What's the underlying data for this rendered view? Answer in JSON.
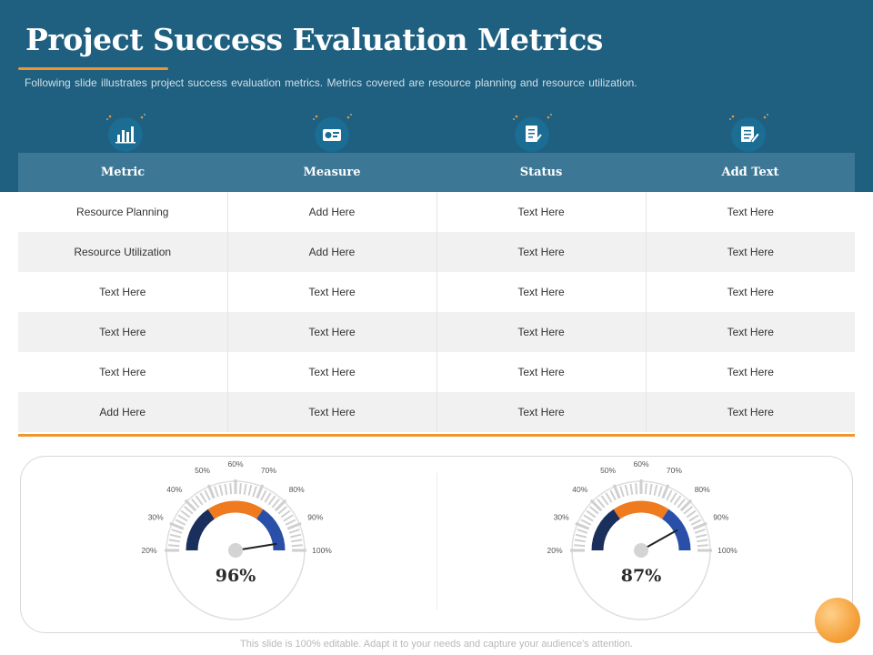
{
  "slide": {
    "title": "Project Success Evaluation Metrics",
    "subtitle": "Following slide illustrates project success evaluation  metrics. Metrics covered  are resource  planning and resource utilization.",
    "footer": "This slide is 100% editable. Adapt it to your needs and capture your audience's attention."
  },
  "icons": [
    "bar-chart-icon",
    "analytics-card-icon",
    "checklist-document-icon",
    "edit-document-icon"
  ],
  "table": {
    "headers": [
      "Metric",
      "Measure",
      "Status",
      "Add Text"
    ],
    "rows": [
      [
        "Resource Planning",
        "Add Here",
        "Text Here",
        "Text Here"
      ],
      [
        "Resource Utilization",
        "Add Here",
        "Text Here",
        "Text Here"
      ],
      [
        "Text Here",
        "Text Here",
        "Text Here",
        "Text Here"
      ],
      [
        "Text Here",
        "Text Here",
        "Text Here",
        "Text Here"
      ],
      [
        "Text Here",
        "Text Here",
        "Text Here",
        "Text Here"
      ],
      [
        "Add Here",
        "Text Here",
        "Text Here",
        "Text Here"
      ]
    ]
  },
  "gauges": [
    {
      "value_label": "96%",
      "value": 96
    },
    {
      "value_label": "87%",
      "value": 87
    }
  ],
  "gauge_scale": [
    "20%",
    "30%",
    "40%",
    "50%",
    "60%",
    "70%",
    "80%",
    "90%",
    "100%"
  ],
  "colors": {
    "header_band": "#1f5f7f",
    "table_header": "#3c7796",
    "accent_orange": "#f0962c",
    "gauge_navy": "#1b2f5c",
    "gauge_orange": "#f07a1e",
    "gauge_blue": "#2a4fa8"
  }
}
